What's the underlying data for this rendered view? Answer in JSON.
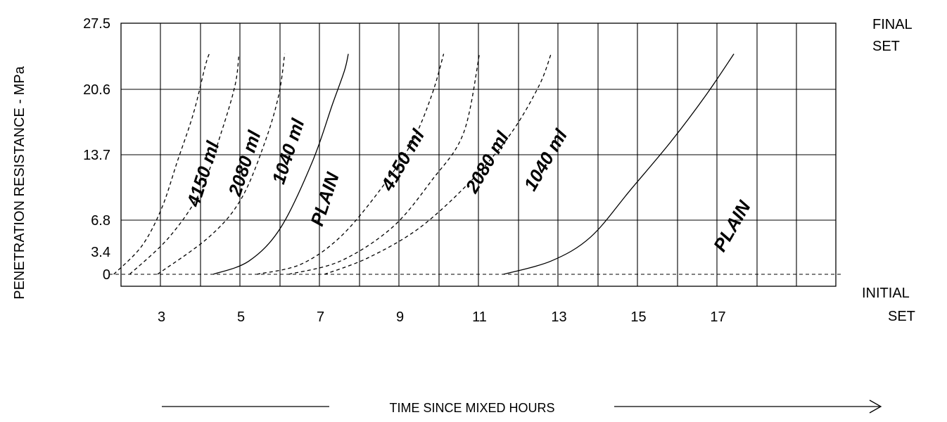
{
  "chart_data": {
    "type": "line",
    "title": "",
    "xlabel": "TIME SINCE MIXED HOURS",
    "ylabel": "PENETRATION RESISTANCE - MPa",
    "xlim": [
      0,
      20
    ],
    "ylim": [
      0,
      27.5
    ],
    "x_ticks": [
      "3",
      "5",
      "7",
      "9",
      "11",
      "13",
      "15",
      "17"
    ],
    "x_tick_values": [
      3,
      5,
      7,
      9,
      11,
      13,
      15,
      17
    ],
    "y_ticks": [
      "0",
      "3.4",
      "6.8",
      "13.7",
      "20.6",
      "27.5"
    ],
    "y_tick_values": [
      0,
      3.4,
      6.8,
      13.7,
      20.6,
      27.5
    ],
    "grid": true,
    "reference_lines": [
      {
        "y": 0,
        "label": "INITIAL SET",
        "style": "dashed"
      },
      {
        "y": 24.5,
        "label": "FINAL SET",
        "style": "none"
      }
    ],
    "right_labels": {
      "final": [
        "FINAL",
        "SET"
      ],
      "initial": [
        "INITIAL",
        "SET"
      ]
    },
    "series": [
      {
        "name": "4150 ml",
        "dashed": true,
        "points": [
          [
            1.8,
            0
          ],
          [
            2.5,
            4
          ],
          [
            3.0,
            8
          ],
          [
            3.4,
            13
          ],
          [
            3.8,
            18
          ],
          [
            4.1,
            23
          ],
          [
            4.2,
            24.3
          ]
        ]
      },
      {
        "name": "2080 ml",
        "dashed": true,
        "points": [
          [
            2.2,
            0
          ],
          [
            3.2,
            5
          ],
          [
            4.0,
            10
          ],
          [
            4.5,
            16
          ],
          [
            4.85,
            21
          ],
          [
            4.95,
            24.3
          ]
        ]
      },
      {
        "name": "1040 ml",
        "dashed": true,
        "points": [
          [
            2.9,
            0
          ],
          [
            4.2,
            5
          ],
          [
            5.0,
            9
          ],
          [
            5.6,
            15
          ],
          [
            5.95,
            20
          ],
          [
            6.1,
            24.3
          ]
        ]
      },
      {
        "name": "PLAIN",
        "dashed": false,
        "points": [
          [
            4.3,
            0
          ],
          [
            5.2,
            2
          ],
          [
            6.0,
            6
          ],
          [
            6.8,
            13
          ],
          [
            7.3,
            19
          ],
          [
            7.6,
            22.5
          ],
          [
            7.7,
            24.3
          ]
        ]
      },
      {
        "name": "4150 ml",
        "dashed": true,
        "points": [
          [
            5.4,
            0
          ],
          [
            6.5,
            1.5
          ],
          [
            7.5,
            5
          ],
          [
            8.5,
            10
          ],
          [
            9.3,
            15
          ],
          [
            9.8,
            20
          ],
          [
            10.1,
            24.3
          ]
        ]
      },
      {
        "name": "2080 ml",
        "dashed": true,
        "points": [
          [
            6.2,
            0
          ],
          [
            7.5,
            2
          ],
          [
            8.8,
            6
          ],
          [
            9.8,
            11
          ],
          [
            10.6,
            16
          ],
          [
            11.0,
            24.3
          ]
        ]
      },
      {
        "name": "1040 ml",
        "dashed": true,
        "points": [
          [
            7.1,
            0
          ],
          [
            8.2,
            2.5
          ],
          [
            9.5,
            6
          ],
          [
            10.8,
            11
          ],
          [
            11.8,
            16
          ],
          [
            12.5,
            21
          ],
          [
            12.8,
            24.3
          ]
        ]
      },
      {
        "name": "PLAIN",
        "dashed": false,
        "points": [
          [
            11.6,
            0
          ],
          [
            12.8,
            2
          ],
          [
            13.8,
            5
          ],
          [
            14.8,
            10
          ],
          [
            15.8,
            15
          ],
          [
            16.7,
            20
          ],
          [
            17.4,
            24.3
          ]
        ]
      }
    ],
    "annotations": [
      {
        "text": "4150 ml"
      },
      {
        "text": "2080 ml"
      },
      {
        "text": "1040 ml"
      },
      {
        "text": "PLAIN"
      },
      {
        "text": "4150 ml"
      },
      {
        "text": "2080 ml"
      },
      {
        "text": "1040 ml"
      },
      {
        "text": "PLAIN"
      }
    ]
  }
}
